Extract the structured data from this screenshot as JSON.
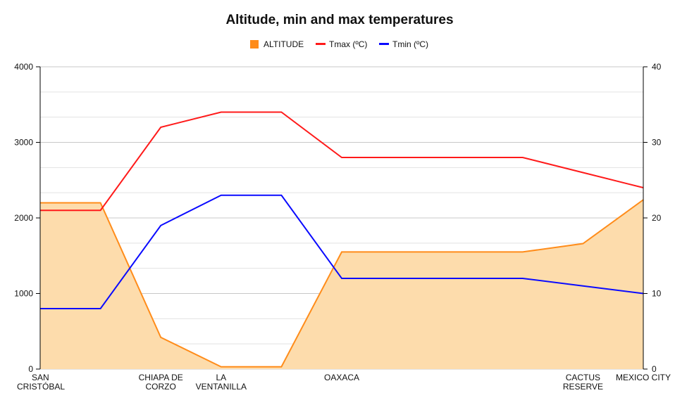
{
  "chart_data": {
    "type": "line",
    "title": "Altitude, min and max temperatures",
    "categories": [
      "SAN CRISTÓBAL",
      "",
      "CHIAPA DE CORZO",
      "LA VENTANILLA",
      "",
      "OAXACA",
      "",
      "",
      "",
      "CACTUS RESERVE",
      "MEXICO CITY"
    ],
    "series": [
      {
        "name": "ALTITUDE",
        "type": "area",
        "axis": "left",
        "color": "#ff8c1a",
        "fill": "#fddcac",
        "values": [
          2200,
          2200,
          420,
          30,
          30,
          1550,
          1550,
          1550,
          1550,
          1660,
          2240
        ]
      },
      {
        "name": "Tmax (ºC)",
        "type": "line",
        "axis": "right",
        "color": "#ff1a1a",
        "values": [
          21,
          21,
          32,
          34,
          34,
          28,
          28,
          28,
          28,
          26,
          24
        ]
      },
      {
        "name": "Tmin (ºC)",
        "type": "line",
        "axis": "right",
        "color": "#0a0aff",
        "values": [
          8,
          8,
          19,
          23,
          23,
          12,
          12,
          12,
          12,
          11,
          10
        ]
      }
    ],
    "y_left": {
      "min": 0,
      "max": 4000,
      "ticks": [
        0,
        1000,
        2000,
        3000,
        4000
      ]
    },
    "y_right": {
      "min": 0,
      "max": 40,
      "ticks": [
        0,
        10,
        20,
        30,
        40
      ]
    },
    "grid": true,
    "legend": "top"
  }
}
